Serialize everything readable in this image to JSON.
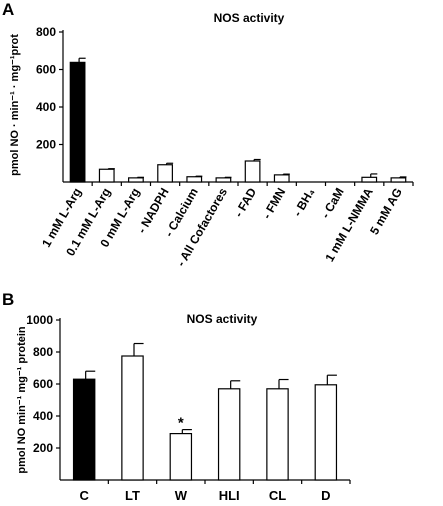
{
  "chart_data": [
    {
      "panel": "A",
      "type": "bar",
      "title": "NOS activity",
      "ylabel": "pmol NO · min⁻¹ · mg⁻¹prot",
      "xlabel": "",
      "ylim": [
        0,
        800
      ],
      "yticks": [
        "200",
        "400",
        "600",
        "800"
      ],
      "categories": [
        "1 mM L-Arg",
        "0.1 mM L-Arg",
        "0 mM L-Arg",
        "- NADPH",
        "- Calcium",
        "- All Cofactores",
        "- FAD",
        "- FMN",
        "- BH₄",
        "- CaM",
        "1 mM L-NMMA",
        "5 mM AG"
      ],
      "values": [
        638,
        68,
        22,
        92,
        28,
        22,
        112,
        38,
        0,
        0,
        25,
        22
      ],
      "errors": [
        22,
        3,
        3,
        8,
        3,
        3,
        8,
        4,
        0,
        0,
        18,
        5
      ],
      "colors": [
        "#000000",
        "#ffffff",
        "#ffffff",
        "#ffffff",
        "#ffffff",
        "#ffffff",
        "#ffffff",
        "#ffffff",
        "#ffffff",
        "#ffffff",
        "#ffffff",
        "#ffffff"
      ],
      "grid": false,
      "legend": "none"
    },
    {
      "panel": "B",
      "type": "bar",
      "title": "NOS activity",
      "ylabel": "pmol NO min⁻¹ mg⁻¹ protein",
      "xlabel": "",
      "ylim": [
        0,
        1000
      ],
      "yticks": [
        "200",
        "400",
        "600",
        "800",
        "1000"
      ],
      "categories": [
        "C",
        "LT",
        "W",
        "HLI",
        "CL",
        "D"
      ],
      "values": [
        630,
        775,
        290,
        570,
        570,
        595
      ],
      "errors": [
        50,
        78,
        25,
        50,
        58,
        60
      ],
      "colors": [
        "#000000",
        "#ffffff",
        "#ffffff",
        "#ffffff",
        "#ffffff",
        "#ffffff"
      ],
      "annotations": [
        {
          "category": "W",
          "text": "*"
        }
      ],
      "grid": false,
      "legend": "none"
    }
  ]
}
